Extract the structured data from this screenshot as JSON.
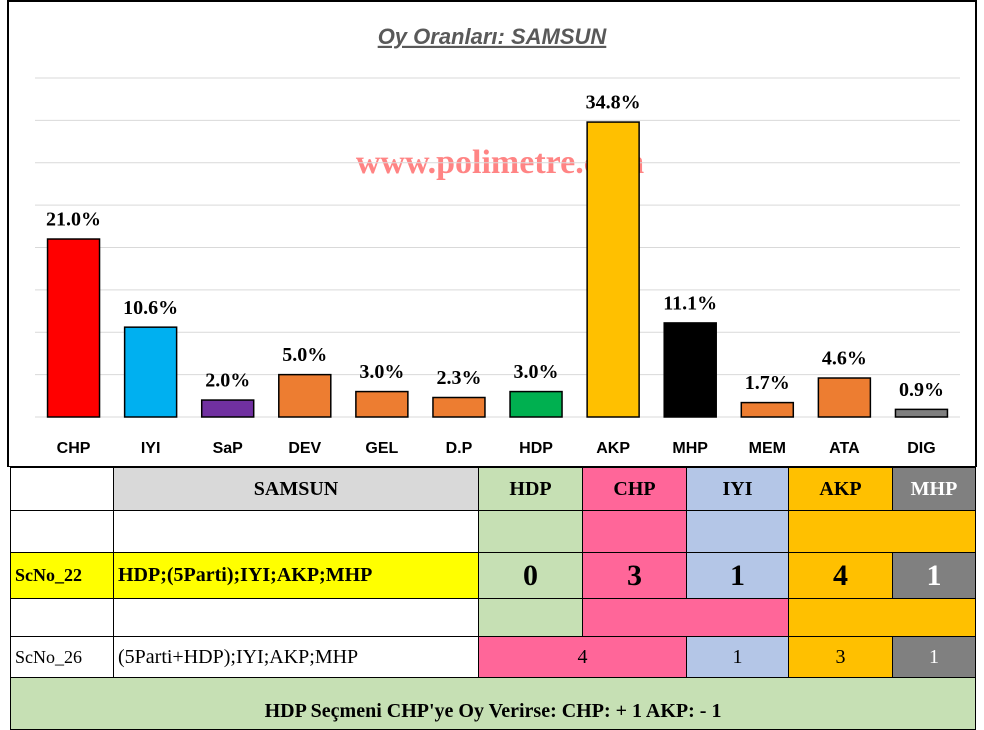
{
  "chart_data": {
    "type": "bar",
    "title": "Oy Oranları: SAMSUN",
    "annotation": "www.polimetre.com",
    "categories": [
      "CHP",
      "IYI",
      "SaP",
      "DEV",
      "GEL",
      "D.P",
      "HDP",
      "AKP",
      "MHP",
      "MEM",
      "ATA",
      "DIG"
    ],
    "values": [
      21.0,
      10.6,
      2.0,
      5.0,
      3.0,
      2.3,
      3.0,
      34.8,
      11.1,
      1.7,
      4.6,
      0.9
    ],
    "value_labels": [
      "21.0%",
      "10.6%",
      "2.0%",
      "5.0%",
      "3.0%",
      "2.3%",
      "3.0%",
      "34.8%",
      "11.1%",
      "1.7%",
      "4.6%",
      "0.9%"
    ],
    "colors": [
      "#ff0000",
      "#00b0f0",
      "#7030a0",
      "#ed7d31",
      "#ed7d31",
      "#ed7d31",
      "#00b050",
      "#ffc000",
      "#000000",
      "#ed7d31",
      "#ed7d31",
      "#7f7f7f"
    ],
    "ylim": [
      0,
      40
    ],
    "yticks": [
      0,
      5,
      10,
      15,
      20,
      25,
      30,
      35,
      40
    ],
    "grid": true
  },
  "table": {
    "header": [
      "SAMSUN",
      "HDP",
      "CHP",
      "IYI",
      "AKP",
      "MHP"
    ],
    "rows": [
      [
        "ScNo_22",
        "HDP;(5Parti);IYI;AKP;MHP",
        0,
        3,
        1,
        4,
        1
      ],
      [
        "ScNo_26",
        "(5Parti+HDP);IYI;AKP;MHP",
        4,
        1,
        3,
        1
      ]
    ],
    "footer": "HDP Seçmeni CHP'ye Oy Verirse: CHP: + 1  AKP: - 1"
  }
}
